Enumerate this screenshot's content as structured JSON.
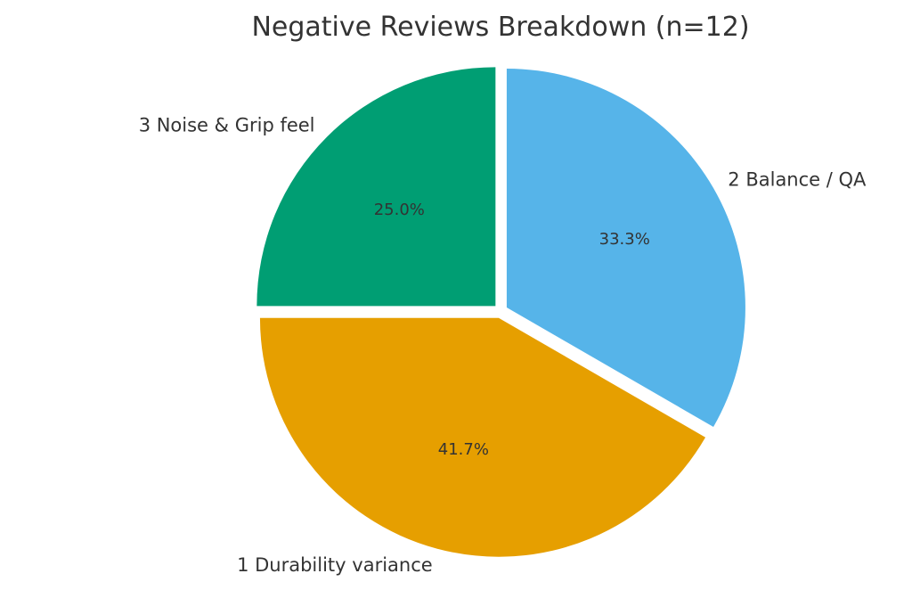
{
  "chart_data": {
    "type": "pie",
    "title": "Negative Reviews Breakdown (n=12)",
    "slices": [
      {
        "label": "3 Noise & Grip feel",
        "value": 3,
        "percent_label": "25.0%",
        "color": "#009E73"
      },
      {
        "label": "1 Durability variance",
        "value": 5,
        "percent_label": "41.7%",
        "color": "#E69F00"
      },
      {
        "label": "2 Balance / QA",
        "value": 4,
        "percent_label": "33.3%",
        "color": "#56B4E9"
      }
    ],
    "start_angle": "90° (top), counter-clockwise",
    "exploded": true
  }
}
